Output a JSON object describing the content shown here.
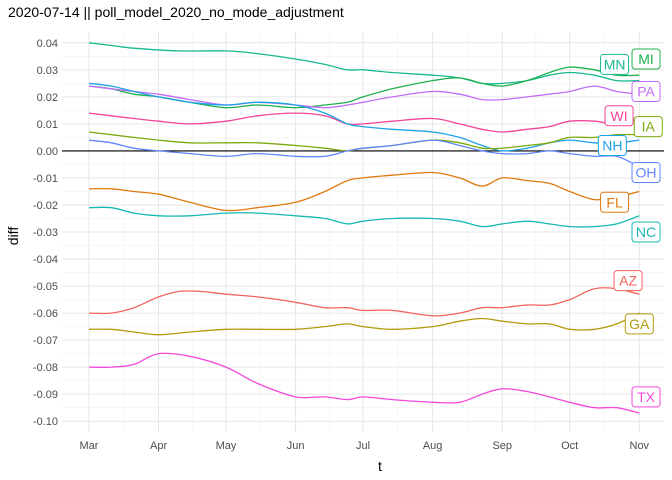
{
  "colors": {
    "MI": "#1eb04c",
    "MN": "#17b890",
    "PA": "#c26cf7",
    "WI": "#f44497",
    "IA": "#7ca90d",
    "NH": "#1da1e6",
    "OH": "#6187ff",
    "FL": "#de7a10",
    "NC": "#16b8b3",
    "AZ": "#f2645e",
    "GA": "#b19b0a",
    "TX": "#f249dc",
    "zero_line": "#000000",
    "grid_major": "#e6e6e6",
    "grid_minor": "#f2f2f2"
  },
  "chart_data": {
    "type": "line",
    "title": "2020-07-14 || poll_model_2020_no_mode_adjustment",
    "xlabel": "t",
    "ylabel": "diff",
    "x_ticks": [
      {
        "label": "Mar",
        "day": 0
      },
      {
        "label": "Apr",
        "day": 31
      },
      {
        "label": "May",
        "day": 61
      },
      {
        "label": "Jun",
        "day": 92
      },
      {
        "label": "Jul",
        "day": 122
      },
      {
        "label": "Aug",
        "day": 153
      },
      {
        "label": "Sep",
        "day": 184
      },
      {
        "label": "Oct",
        "day": 214
      },
      {
        "label": "Nov",
        "day": 245
      }
    ],
    "x_range_days": [
      -12,
      256
    ],
    "ylim": [
      -0.104,
      0.044
    ],
    "y_ticks": [
      0.04,
      0.03,
      0.02,
      0.01,
      0.0,
      -0.01,
      -0.02,
      -0.03,
      -0.04,
      -0.05,
      -0.06,
      -0.07,
      -0.08,
      -0.09,
      -0.1
    ],
    "y_tick_labels": [
      "0.04",
      "0.03",
      "0.02",
      "0.01",
      "0.00",
      "-0.01",
      "-0.02",
      "-0.03",
      "-0.04",
      "-0.05",
      "-0.06",
      "-0.07",
      "-0.08",
      "-0.09",
      "-0.10"
    ],
    "zero_line": 0,
    "grid": true,
    "series": [
      {
        "name": "MN",
        "x": [
          0,
          10,
          20,
          40,
          61,
          75,
          92,
          105,
          115,
          122,
          135,
          153,
          165,
          175,
          184,
          195,
          205,
          214,
          225,
          235,
          245
        ],
        "y": [
          0.04,
          0.039,
          0.038,
          0.037,
          0.037,
          0.036,
          0.034,
          0.032,
          0.03,
          0.03,
          0.029,
          0.028,
          0.027,
          0.025,
          0.025,
          0.026,
          0.028,
          0.029,
          0.028,
          0.026,
          0.026
        ]
      },
      {
        "name": "MI",
        "x": [
          0,
          10,
          20,
          31,
          45,
          61,
          75,
          92,
          105,
          115,
          122,
          135,
          153,
          165,
          175,
          184,
          195,
          205,
          214,
          225,
          235,
          245
        ],
        "y": [
          0.024,
          0.023,
          0.021,
          0.02,
          0.018,
          0.016,
          0.017,
          0.016,
          0.017,
          0.018,
          0.02,
          0.023,
          0.026,
          0.027,
          0.025,
          0.024,
          0.026,
          0.029,
          0.031,
          0.03,
          0.028,
          0.028
        ]
      },
      {
        "name": "PA",
        "x": [
          0,
          10,
          20,
          31,
          45,
          61,
          75,
          92,
          105,
          115,
          122,
          135,
          153,
          165,
          175,
          184,
          195,
          205,
          214,
          225,
          235,
          245
        ],
        "y": [
          0.024,
          0.023,
          0.022,
          0.021,
          0.019,
          0.017,
          0.018,
          0.017,
          0.016,
          0.017,
          0.018,
          0.02,
          0.022,
          0.021,
          0.019,
          0.019,
          0.02,
          0.021,
          0.022,
          0.024,
          0.022,
          0.021
        ]
      },
      {
        "name": "WI",
        "x": [
          0,
          10,
          20,
          31,
          45,
          61,
          75,
          92,
          105,
          115,
          122,
          135,
          153,
          165,
          175,
          184,
          195,
          205,
          214,
          225,
          235,
          245
        ],
        "y": [
          0.014,
          0.013,
          0.012,
          0.011,
          0.01,
          0.011,
          0.013,
          0.014,
          0.013,
          0.01,
          0.01,
          0.011,
          0.012,
          0.01,
          0.008,
          0.007,
          0.008,
          0.009,
          0.011,
          0.011,
          0.01,
          0.012
        ]
      },
      {
        "name": "NH",
        "x": [
          0,
          10,
          20,
          31,
          45,
          61,
          75,
          92,
          105,
          115,
          122,
          135,
          153,
          165,
          175,
          184,
          195,
          205,
          214,
          225,
          235,
          245
        ],
        "y": [
          0.025,
          0.024,
          0.022,
          0.02,
          0.018,
          0.017,
          0.018,
          0.017,
          0.014,
          0.01,
          0.009,
          0.008,
          0.007,
          0.005,
          0.002,
          0.0,
          0.001,
          0.003,
          0.004,
          0.003,
          0.003,
          0.004
        ]
      },
      {
        "name": "IA",
        "x": [
          0,
          10,
          20,
          31,
          45,
          61,
          75,
          92,
          105,
          115,
          122,
          135,
          153,
          165,
          175,
          184,
          195,
          205,
          214,
          225,
          235,
          245
        ],
        "y": [
          0.007,
          0.006,
          0.005,
          0.004,
          0.003,
          0.003,
          0.003,
          0.002,
          0.001,
          0.0,
          0.001,
          0.002,
          0.004,
          0.003,
          0.001,
          0.001,
          0.002,
          0.003,
          0.005,
          0.005,
          0.006,
          0.006
        ]
      },
      {
        "name": "OH",
        "x": [
          0,
          10,
          20,
          31,
          45,
          61,
          75,
          92,
          105,
          115,
          122,
          135,
          153,
          165,
          175,
          184,
          195,
          205,
          214,
          225,
          235,
          245
        ],
        "y": [
          0.004,
          0.003,
          0.001,
          0.0,
          -0.001,
          -0.002,
          -0.001,
          -0.002,
          -0.002,
          0.0,
          0.001,
          0.002,
          0.004,
          0.002,
          0.0,
          -0.001,
          -0.001,
          0.0,
          -0.001,
          -0.002,
          -0.002,
          -0.006
        ]
      },
      {
        "name": "FL",
        "x": [
          0,
          10,
          20,
          31,
          45,
          61,
          75,
          92,
          105,
          115,
          122,
          135,
          153,
          165,
          175,
          184,
          195,
          205,
          214,
          225,
          235,
          245
        ],
        "y": [
          -0.014,
          -0.014,
          -0.015,
          -0.016,
          -0.019,
          -0.022,
          -0.021,
          -0.019,
          -0.015,
          -0.011,
          -0.01,
          -0.009,
          -0.008,
          -0.01,
          -0.013,
          -0.01,
          -0.011,
          -0.012,
          -0.015,
          -0.018,
          -0.017,
          -0.015
        ]
      },
      {
        "name": "NC",
        "x": [
          0,
          10,
          20,
          31,
          45,
          61,
          75,
          92,
          105,
          115,
          122,
          135,
          153,
          165,
          175,
          184,
          195,
          205,
          214,
          225,
          235,
          245
        ],
        "y": [
          -0.021,
          -0.021,
          -0.023,
          -0.024,
          -0.024,
          -0.023,
          -0.023,
          -0.024,
          -0.025,
          -0.027,
          -0.026,
          -0.025,
          -0.025,
          -0.026,
          -0.028,
          -0.027,
          -0.026,
          -0.027,
          -0.028,
          -0.028,
          -0.027,
          -0.024
        ]
      },
      {
        "name": "AZ",
        "x": [
          0,
          10,
          20,
          31,
          40,
          50,
          61,
          75,
          92,
          105,
          115,
          122,
          135,
          153,
          165,
          175,
          184,
          195,
          205,
          214,
          225,
          235,
          245
        ],
        "y": [
          -0.06,
          -0.06,
          -0.058,
          -0.054,
          -0.052,
          -0.052,
          -0.053,
          -0.054,
          -0.056,
          -0.058,
          -0.058,
          -0.059,
          -0.059,
          -0.061,
          -0.06,
          -0.058,
          -0.058,
          -0.057,
          -0.057,
          -0.055,
          -0.051,
          -0.051,
          -0.053
        ]
      },
      {
        "name": "GA",
        "x": [
          0,
          10,
          20,
          31,
          45,
          61,
          75,
          92,
          105,
          115,
          122,
          135,
          153,
          165,
          175,
          184,
          195,
          205,
          214,
          225,
          235,
          245
        ],
        "y": [
          -0.066,
          -0.066,
          -0.067,
          -0.068,
          -0.067,
          -0.066,
          -0.066,
          -0.066,
          -0.065,
          -0.064,
          -0.065,
          -0.066,
          -0.065,
          -0.063,
          -0.062,
          -0.063,
          -0.064,
          -0.064,
          -0.066,
          -0.066,
          -0.064,
          -0.06
        ]
      },
      {
        "name": "TX",
        "x": [
          0,
          10,
          20,
          31,
          45,
          61,
          75,
          92,
          105,
          115,
          122,
          135,
          153,
          165,
          175,
          184,
          195,
          205,
          214,
          225,
          235,
          245
        ],
        "y": [
          -0.08,
          -0.08,
          -0.079,
          -0.075,
          -0.076,
          -0.08,
          -0.086,
          -0.091,
          -0.091,
          -0.092,
          -0.091,
          -0.092,
          -0.093,
          -0.093,
          -0.09,
          -0.088,
          -0.089,
          -0.091,
          -0.093,
          -0.095,
          -0.095,
          -0.097
        ]
      }
    ],
    "labels": [
      {
        "name": "MI",
        "text": "MI",
        "day": 248,
        "y": 0.034
      },
      {
        "name": "MN",
        "text": "MN",
        "day": 234,
        "y": 0.032
      },
      {
        "name": "PA",
        "text": "PA",
        "day": 248,
        "y": 0.022
      },
      {
        "name": "WI",
        "text": "WI",
        "day": 236,
        "y": 0.013
      },
      {
        "name": "IA",
        "text": "IA",
        "day": 249,
        "y": 0.009
      },
      {
        "name": "NH",
        "text": "NH",
        "day": 233,
        "y": 0.002
      },
      {
        "name": "OH",
        "text": "OH",
        "day": 248,
        "y": -0.008
      },
      {
        "name": "FL",
        "text": "FL",
        "day": 234,
        "y": -0.019
      },
      {
        "name": "NC",
        "text": "NC",
        "day": 248,
        "y": -0.03
      },
      {
        "name": "AZ",
        "text": "AZ",
        "day": 240,
        "y": -0.048
      },
      {
        "name": "GA",
        "text": "GA",
        "day": 245,
        "y": -0.064
      },
      {
        "name": "TX",
        "text": "TX",
        "day": 248,
        "y": -0.091
      }
    ]
  }
}
